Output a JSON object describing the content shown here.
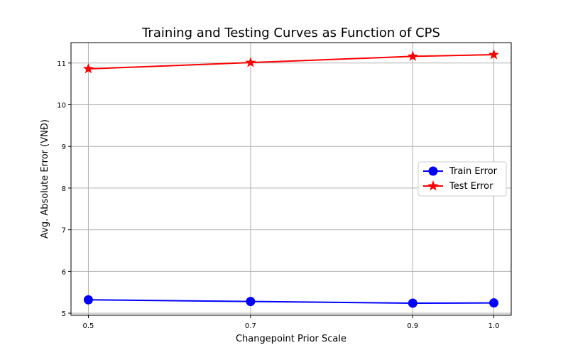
{
  "chart_data": {
    "type": "line",
    "title": "Training and Testing Curves as Function of CPS",
    "xlabel": "Changepoint Prior Scale",
    "ylabel": "Avg. Absolute Error (VNĐ)",
    "x": [
      0.5,
      0.7,
      0.9,
      1.0
    ],
    "x_tick_labels": [
      "0.5",
      "0.7",
      "0.9",
      "1.0"
    ],
    "y_ticks": [
      5,
      6,
      7,
      8,
      9,
      10,
      11
    ],
    "xlim": [
      0.4786,
      1.0214
    ],
    "ylim": [
      4.95,
      11.49
    ],
    "grid": true,
    "legend_position": "center-right",
    "series": [
      {
        "name": "Train Error",
        "values": [
          5.32,
          5.28,
          5.24,
          5.245
        ],
        "color": "#0000ff",
        "marker": "circle"
      },
      {
        "name": "Test Error",
        "values": [
          10.86,
          11.01,
          11.16,
          11.2
        ],
        "color": "#ff0000",
        "marker": "star"
      }
    ]
  }
}
